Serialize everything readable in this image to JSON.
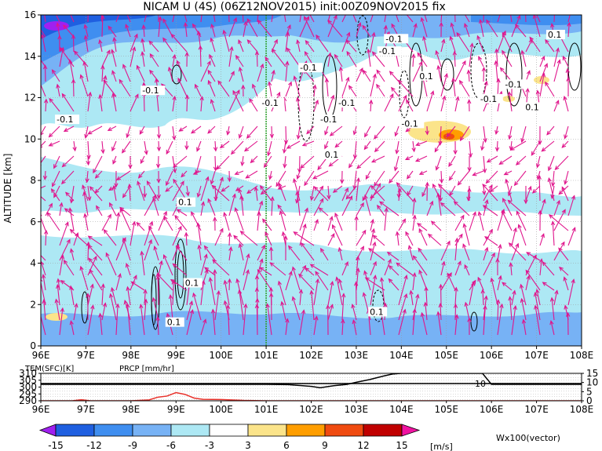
{
  "title": "NICAM U (4S) (06Z12NOV2015) init:00Z09NOV2015 fix",
  "colors": {
    "vector": "#e0158c",
    "rain": "#e8312a",
    "green_line": "#2ca02c",
    "cb_lm15": "#a020f0",
    "cb_m15_m12": "#1f5fe0",
    "cb_m12_m9": "#3f8ef0",
    "cb_m9_m6": "#77b2f5",
    "cb_m6_m3": "#ade8f4",
    "cb_m3_3": "#ffffff",
    "cb_3_6": "#fbe48a",
    "cb_6_9": "#ff9e00",
    "cb_9_12": "#f04b10",
    "cb_12_15": "#c00000",
    "cb_gt15": "#f013a0"
  },
  "chart_data": [
    {
      "type": "heatmap",
      "description_panel": "main",
      "ylabel": "ALTITUDE [km]",
      "xlim": [
        96,
        108
      ],
      "ylim": [
        0,
        16
      ],
      "x_ticks": [
        "96E",
        "97E",
        "98E",
        "99E",
        "100E",
        "101E",
        "102E",
        "103E",
        "104E",
        "105E",
        "106E",
        "107E",
        "108E"
      ],
      "y_ticks": [
        "0",
        "2",
        "4",
        "6",
        "8",
        "10",
        "12",
        "14",
        "16"
      ],
      "grid": true,
      "marked_longitude": 101,
      "contour_labels": [
        {
          "text": "-0.1",
          "x": 96.35,
          "y": 10.8
        },
        {
          "text": "-0.1",
          "x": 98.25,
          "y": 12.2
        },
        {
          "text": "-0.1",
          "x": 100.9,
          "y": 11.6
        },
        {
          "text": "-0.1",
          "x": 101.75,
          "y": 13.3
        },
        {
          "text": "-0.1",
          "x": 102.2,
          "y": 10.8
        },
        {
          "text": "-0.1",
          "x": 102.6,
          "y": 11.6
        },
        {
          "text": "-0.1",
          "x": 103.65,
          "y": 14.7
        },
        {
          "text": "-0.1",
          "x": 103.5,
          "y": 14.1
        },
        {
          "text": "0.1",
          "x": 104.4,
          "y": 12.9
        },
        {
          "text": "-0.1",
          "x": 104.0,
          "y": 10.6
        },
        {
          "text": "-0.1",
          "x": 105.75,
          "y": 11.8
        },
        {
          "text": "-0.1",
          "x": 106.3,
          "y": 12.5
        },
        {
          "text": "0.1",
          "x": 106.75,
          "y": 11.4
        },
        {
          "text": "0.1",
          "x": 107.25,
          "y": 14.9
        },
        {
          "text": "0.1",
          "x": 102.3,
          "y": 9.1
        },
        {
          "text": "0.1",
          "x": 99.05,
          "y": 6.8
        },
        {
          "text": "0.1",
          "x": 99.2,
          "y": 2.9
        },
        {
          "text": "0.1",
          "x": 98.8,
          "y": 1.0
        },
        {
          "text": "0.1",
          "x": 103.3,
          "y": 1.5
        }
      ],
      "vector_label": "Wx100(vector)"
    },
    {
      "type": "line",
      "description_panel": "surface",
      "labels": [
        "TEM(SFC)[K]",
        "PRCP [mm/hr]"
      ],
      "xlim": [
        96,
        108
      ],
      "y_left_ticks": [
        "310",
        "305",
        "300",
        "295",
        "290"
      ],
      "y_right_ticks": [
        "15",
        "10",
        "5",
        "0"
      ],
      "y_left_range": [
        290,
        310
      ],
      "y_right_range": [
        0,
        15
      ],
      "x_ticks": [
        "96E",
        "97E",
        "98E",
        "99E",
        "100E",
        "101E",
        "102E",
        "103E",
        "104E",
        "105E",
        "106E",
        "107E",
        "108E"
      ],
      "series": [
        {
          "name": "TEM(SFC)[K]",
          "x": [
            96,
            96.5,
            97,
            97.5,
            98,
            98.5,
            99,
            99.5,
            100,
            100.5,
            101,
            101.5,
            102,
            102.2,
            102.5,
            102.8,
            103,
            103.3,
            103.6,
            103.8,
            104,
            104.5,
            105,
            105.5,
            105.8,
            106,
            106.5,
            107,
            107.5,
            108
          ],
          "values": [
            302,
            302,
            302,
            302,
            302,
            302,
            302,
            302,
            302,
            302,
            302,
            301.8,
            300.5,
            299.5,
            301,
            302,
            303.5,
            305.5,
            308,
            309.5,
            310,
            310,
            310,
            310,
            310,
            302,
            302,
            302,
            302,
            302
          ]
        },
        {
          "name": "PRCP [mm/hr]",
          "x": [
            96,
            96.7,
            96.9,
            97.1,
            97.5,
            98,
            98.4,
            98.6,
            98.8,
            99,
            99.2,
            99.4,
            99.6,
            100,
            100.5,
            101,
            102,
            103,
            104,
            105,
            106,
            107,
            108
          ],
          "values": [
            0,
            0,
            0.6,
            0,
            0,
            0,
            0.5,
            2.0,
            2.6,
            4.5,
            3.5,
            1.5,
            0.8,
            0.7,
            0.2,
            0,
            0,
            0,
            0,
            0,
            0,
            0,
            0
          ]
        }
      ],
      "annotation": "10"
    }
  ],
  "colorbar": {
    "ticks": [
      "-15",
      "-12",
      "-9",
      "-6",
      "-3",
      "3",
      "6",
      "9",
      "12",
      "15"
    ],
    "unit": "[m/s]"
  }
}
